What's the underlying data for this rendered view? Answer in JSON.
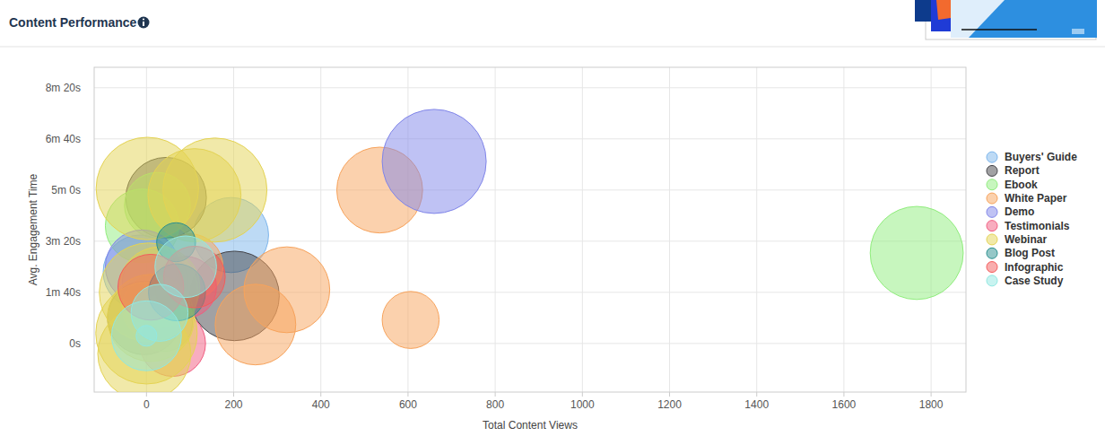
{
  "chart_data": {
    "type": "bubble",
    "title": "Content Performance",
    "x_label": "Total Content Views",
    "y_label": "Avg. Engagement Time",
    "xlim": [
      -120,
      1880
    ],
    "ylim": [
      -95,
      540
    ],
    "xticks": [
      0,
      200,
      400,
      600,
      800,
      1000,
      1200,
      1400,
      1600,
      1800
    ],
    "yticks": [
      {
        "value": 0,
        "label": "0s"
      },
      {
        "value": 100,
        "label": "1m 40s"
      },
      {
        "value": 200,
        "label": "3m 20s"
      },
      {
        "value": 300,
        "label": "5m 0s"
      },
      {
        "value": 400,
        "label": "6m 40s"
      },
      {
        "value": 500,
        "label": "8m 20s"
      }
    ],
    "grid": true,
    "legend": "right",
    "series": [
      {
        "name": "Buyers' Guide",
        "color": "#7cb5ec",
        "x": [
          194,
          20,
          -15
        ],
        "values": [
          212,
          120,
          140
        ],
        "sizes": [
          52,
          40,
          50
        ]
      },
      {
        "name": "Report",
        "color": "#434348",
        "x": [
          202,
          45,
          -5
        ],
        "values": [
          93,
          285,
          50
        ],
        "sizes": [
          74,
          60,
          50
        ]
      },
      {
        "name": "Ebook",
        "color": "#90ed7d",
        "x": [
          1767,
          -10,
          25,
          40
        ],
        "values": [
          177,
          230,
          270,
          40
        ],
        "sizes": [
          80,
          50,
          40,
          30
        ]
      },
      {
        "name": "White Paper",
        "color": "#f7a35c",
        "x": [
          535,
          606,
          322,
          250,
          20,
          100
        ],
        "values": [
          300,
          46,
          105,
          37,
          70,
          150
        ],
        "sizes": [
          68,
          30,
          68,
          60,
          40,
          40
        ]
      },
      {
        "name": "Demo",
        "color": "#8085e9",
        "x": [
          660,
          -10
        ],
        "values": [
          356,
          150
        ],
        "sizes": [
          100,
          50
        ]
      },
      {
        "name": "Testimonials",
        "color": "#f15c80",
        "x": [
          60,
          90
        ],
        "values": [
          0,
          110
        ],
        "sizes": [
          40,
          35
        ]
      },
      {
        "name": "Webinar",
        "color": "#e4d354",
        "x": [
          2,
          157,
          110,
          5,
          0,
          10,
          30,
          -5
        ],
        "values": [
          303,
          300,
          290,
          100,
          20,
          50,
          110,
          -20
        ],
        "sizes": [
          97,
          100,
          80,
          90,
          95,
          70,
          60,
          80
        ]
      },
      {
        "name": "Blog Post",
        "color": "#2b908f",
        "x": [
          68,
          70
        ],
        "values": [
          198,
          100
        ],
        "sizes": [
          14,
          30
        ]
      },
      {
        "name": "Infographic",
        "color": "#f45b5b",
        "x": [
          10,
          110
        ],
        "values": [
          110,
          130
        ],
        "sizes": [
          40,
          35
        ]
      },
      {
        "name": "Case Study",
        "color": "#91e8e1",
        "x": [
          0,
          0,
          90,
          30
        ],
        "values": [
          15,
          15,
          150,
          60
        ],
        "sizes": [
          45,
          4,
          35,
          30
        ]
      }
    ]
  }
}
